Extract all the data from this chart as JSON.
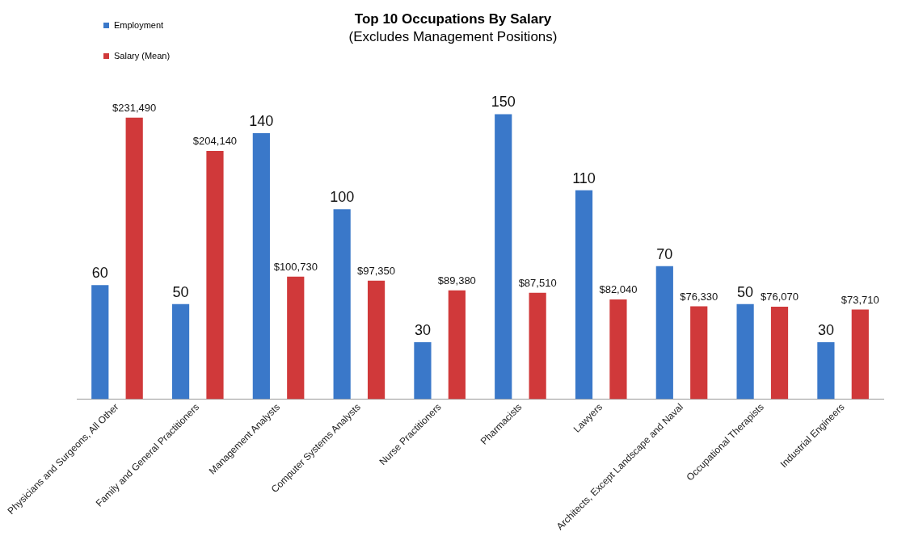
{
  "chart_data": {
    "type": "bar",
    "title": "Top 10 Occupations By Salary",
    "subtitle": "(Excludes Management Positions)",
    "categories": [
      "Physicians and Surgeons, All Other",
      "Family and General Practitioners",
      "Management Analysts",
      "Computer Systems Analysts",
      "Nurse Practitioners",
      "Pharmacists",
      "Lawyers",
      "Architects, Except Landscape and Naval",
      "Occupational Therapists",
      "Industrial Engineers"
    ],
    "series": [
      {
        "name": "Employment",
        "color": "#3a78c9",
        "values": [
          60,
          50,
          140,
          100,
          30,
          150,
          110,
          70,
          50,
          30
        ]
      },
      {
        "name": "Salary (Mean)",
        "color": "#d0393a",
        "axis": "y2",
        "values": [
          231490,
          204140,
          100730,
          97350,
          89380,
          87510,
          82040,
          76330,
          76070,
          73710
        ],
        "value_labels": [
          "$231,490",
          "$204,140",
          "$100,730",
          "$97,350",
          "$89,380",
          "$87,510",
          "$82,040",
          "$76,330",
          "$76,070",
          "$73,710"
        ]
      }
    ],
    "data_labels": true,
    "legend": "top left",
    "grid": false,
    "tick_labels": "x"
  }
}
